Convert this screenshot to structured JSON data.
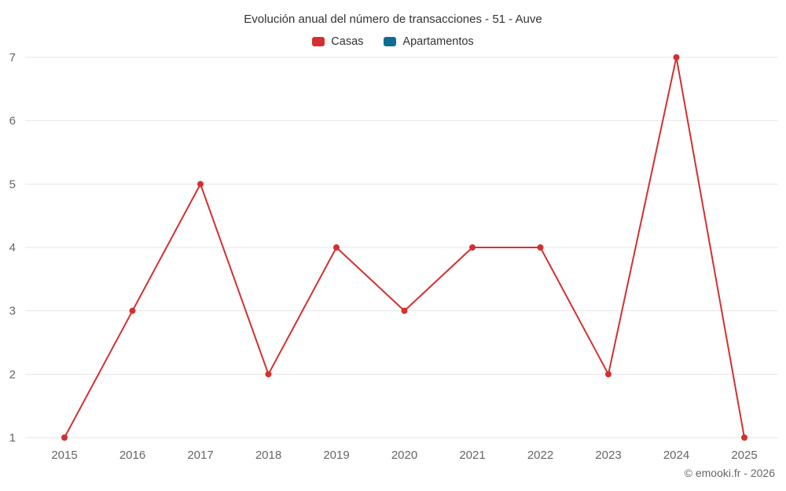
{
  "chart_data": {
    "type": "line",
    "title": "Evolución anual del número de transacciones - 51 - Auve",
    "categories": [
      "2015",
      "2016",
      "2017",
      "2018",
      "2019",
      "2020",
      "2021",
      "2022",
      "2023",
      "2024",
      "2025"
    ],
    "series": [
      {
        "name": "Casas",
        "color": "#d3302f",
        "values": [
          1,
          3,
          5,
          2,
          4,
          3,
          4,
          4,
          2,
          7,
          1
        ]
      },
      {
        "name": "Apartamentos",
        "color": "#0f6d94",
        "values": []
      }
    ],
    "xlabel": "",
    "ylabel": "",
    "ylim": [
      1,
      7
    ],
    "yticks": [
      1,
      2,
      3,
      4,
      5,
      6,
      7
    ],
    "grid": "horizontal",
    "legend_position": "top",
    "gridline_color": "#e6e6e6",
    "axis_label_color": "#666666"
  },
  "footer": {
    "credit": "© emooki.fr - 2026"
  }
}
